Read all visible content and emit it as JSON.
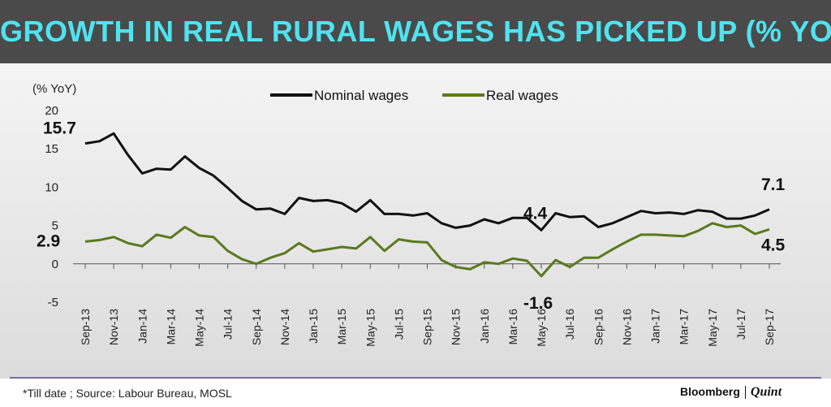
{
  "header": {
    "title": "GROWTH IN REAL RURAL WAGES HAS PICKED UP (% YOY)"
  },
  "footer": {
    "source": "*Till date ; Source: Labour Bureau, MOSL",
    "brand_main": "Bloomberg",
    "brand_sub": "Quint"
  },
  "colors": {
    "header_bg": "#4a4a4a",
    "title": "#4fe3f0",
    "nominal": "#111111",
    "real": "#5a7a1e"
  },
  "chart_data": {
    "type": "line",
    "ylabel": "(% YoY)",
    "ylim": [
      -5,
      20
    ],
    "yticks": [
      -5,
      0,
      5,
      10,
      15,
      20
    ],
    "tick_labels": [
      "Sep-13",
      "Nov-13",
      "Jan-14",
      "Mar-14",
      "May-14",
      "Jul-14",
      "Sep-14",
      "Nov-14",
      "Jan-15",
      "Mar-15",
      "May-15",
      "Jul-15",
      "Sep-15",
      "Nov-15",
      "Jan-16",
      "Mar-16",
      "May-16",
      "Jul-16",
      "Sep-16",
      "Nov-16",
      "Jan-17",
      "Mar-17",
      "May-17",
      "Jul-17",
      "Sep-17"
    ],
    "legend_position": "top-center",
    "series": [
      {
        "name": "Nominal wages",
        "values": [
          15.7,
          16.0,
          17.0,
          14.2,
          11.8,
          12.4,
          12.3,
          14.0,
          12.5,
          11.5,
          9.9,
          8.2,
          7.1,
          7.2,
          6.5,
          8.6,
          8.2,
          8.3,
          7.9,
          6.8,
          8.3,
          6.5,
          6.5,
          6.3,
          6.6,
          5.3,
          4.7,
          5.0,
          5.8,
          5.3,
          6.0,
          6.0,
          4.4,
          6.6,
          6.1,
          6.2,
          4.8,
          5.3,
          6.1,
          6.9,
          6.6,
          6.7,
          6.5,
          7.0,
          6.8,
          5.9,
          5.9,
          6.3,
          7.1
        ]
      },
      {
        "name": "Real wages",
        "values": [
          2.9,
          3.1,
          3.5,
          2.7,
          2.3,
          3.8,
          3.4,
          4.8,
          3.7,
          3.5,
          1.7,
          0.6,
          0.0,
          0.8,
          1.4,
          2.7,
          1.6,
          1.9,
          2.2,
          2.0,
          3.5,
          1.7,
          3.2,
          2.9,
          2.8,
          0.5,
          -0.4,
          -0.7,
          0.2,
          0.0,
          0.7,
          0.4,
          -1.6,
          0.5,
          -0.4,
          0.8,
          0.8,
          1.9,
          2.9,
          3.8,
          3.8,
          3.7,
          3.6,
          4.3,
          5.3,
          4.8,
          5.0,
          3.9,
          4.5
        ]
      }
    ],
    "annotations": [
      {
        "text": "15.7",
        "series": 0,
        "index": 0
      },
      {
        "text": "2.9",
        "series": 1,
        "index": 0
      },
      {
        "text": "4.4",
        "series": 0,
        "index": 32
      },
      {
        "text": "-1.6",
        "series": 1,
        "index": 32
      },
      {
        "text": "7.1",
        "series": 0,
        "index": 48
      },
      {
        "text": "4.5",
        "series": 1,
        "index": 48
      }
    ]
  }
}
